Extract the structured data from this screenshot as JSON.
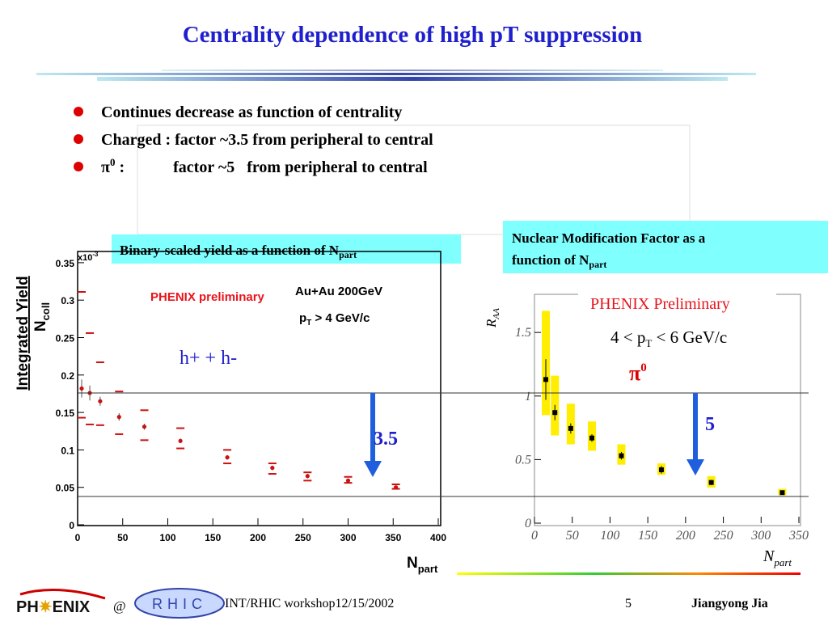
{
  "title": "Centrality dependence of high pT suppression",
  "bullets": [
    {
      "text": "Continues decrease as function of centrality"
    },
    {
      "text": "Charged : factor ~3.5 from peripheral to central"
    },
    {
      "text": "π",
      "sup": "0",
      "rest": " :            factor ~5   from peripheral to central"
    }
  ],
  "panel_labels": {
    "left": {
      "text": "Binary-scaled yield as a function of N",
      "sub": "part"
    },
    "right": {
      "line1": "Nuclear Modification Factor as a",
      "text": "function of N",
      "sub": "part"
    }
  },
  "arrows": {
    "left": "3.5",
    "right": "5"
  },
  "footer": {
    "logo": "PH",
    "logo2": "ENIX",
    "at": "@",
    "rhic": "RHIC",
    "event": "INT/RHIC workshop12/15/2002",
    "page": "5",
    "author": "Jiangyong Jia"
  },
  "chart_data": [
    {
      "type": "scatter",
      "x_label": "N",
      "x_label_sub": "part",
      "y_label": "Integrated Yield",
      "y_label2": "N",
      "y_label2_sub": "coll",
      "multiplier": "x10",
      "multiplier_sup": "-3",
      "annotations": [
        "PHENIX preliminary",
        "Au+Au 200GeV"
      ],
      "pt_label": {
        "p": "p",
        "sub": "T",
        "rest": " > 4 GeV/c"
      },
      "xlim": [
        0,
        400
      ],
      "xticks": [
        0,
        50,
        100,
        150,
        200,
        250,
        300,
        350,
        400
      ],
      "ylim": [
        0,
        0.365
      ],
      "yticks": [
        0,
        0.05,
        0.1,
        0.15,
        0.2,
        0.25,
        0.3,
        0.35
      ],
      "series": [
        {
          "name": "h+ + h-",
          "color": "#cc1111",
          "x": [
            4.5,
            13.5,
            25,
            46,
            74,
            114,
            166,
            216,
            255,
            300,
            353
          ],
          "values": [
            0.182,
            0.176,
            0.165,
            0.144,
            0.131,
            0.112,
            0.09,
            0.076,
            0.065,
            0.059,
            0.05
          ],
          "errors": [
            0.012,
            0.01,
            0.006,
            0.005,
            0.004,
            0.003,
            0.003,
            0.003,
            0.003,
            0.003,
            0.002
          ],
          "sys_upper": [
            0.311,
            0.256,
            0.217,
            0.178,
            0.153,
            0.129,
            0.1,
            0.082,
            0.07,
            0.064,
            0.054
          ],
          "sys_lower": [
            0.143,
            0.134,
            0.133,
            0.121,
            0.113,
            0.102,
            0.082,
            0.068,
            0.059,
            0.056,
            0.048
          ]
        }
      ]
    },
    {
      "type": "scatter",
      "x_label": "N",
      "x_label_sub": "part",
      "y_label": "R",
      "y_label_sub": "AA",
      "annotations": [
        "PHENIX Preliminary"
      ],
      "pt_label": {
        "p": "4 < p",
        "sub": "T",
        "rest": " < 6 GeV/c"
      },
      "xlim": [
        0,
        350
      ],
      "xticks": [
        0,
        50,
        100,
        150,
        200,
        250,
        300,
        350
      ],
      "ylim": [
        0,
        1.8
      ],
      "yticks": [
        0,
        0.5,
        1,
        1.5
      ],
      "series": [
        {
          "name": "π",
          "name_sup": "0",
          "color": "#000000",
          "sys_color": "#ffee00",
          "x": [
            15,
            27,
            48,
            76,
            115,
            168,
            234,
            328
          ],
          "values": [
            1.13,
            0.87,
            0.745,
            0.67,
            0.53,
            0.42,
            0.32,
            0.24
          ],
          "errors": [
            0.16,
            0.06,
            0.04,
            0.03,
            0.03,
            0.03,
            0.02,
            0.01
          ],
          "sys_upper": [
            1.67,
            1.16,
            0.94,
            0.8,
            0.62,
            0.47,
            0.37,
            0.27
          ],
          "sys_lower": [
            0.85,
            0.69,
            0.62,
            0.57,
            0.46,
            0.38,
            0.28,
            0.22
          ]
        }
      ]
    }
  ]
}
